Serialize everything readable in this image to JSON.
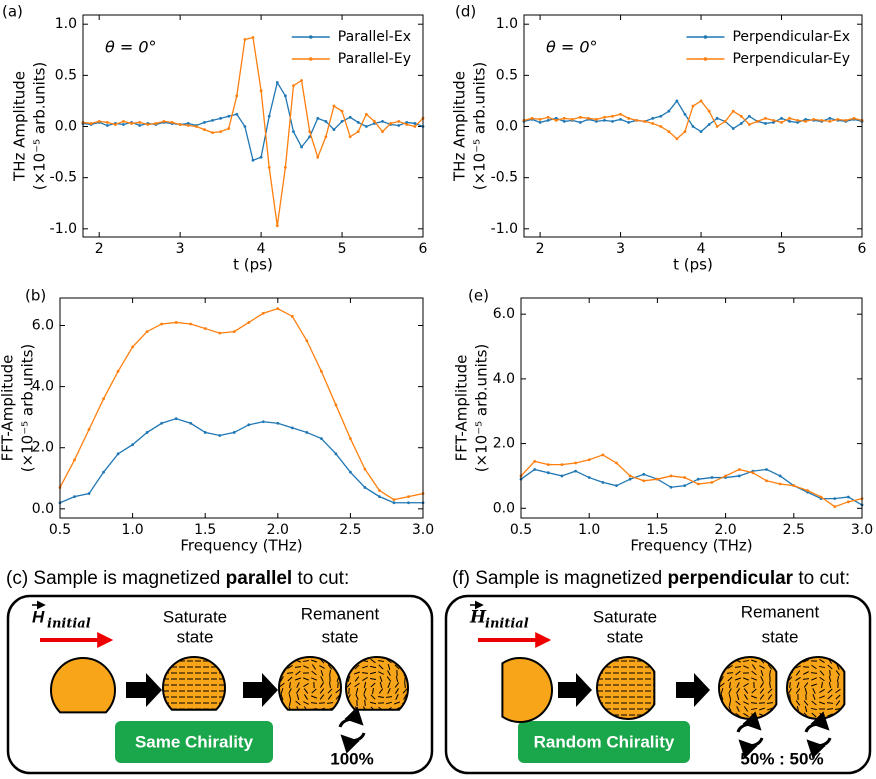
{
  "chart_data": [
    {
      "type": "line",
      "panel_label": "(a)",
      "xlabel": "t (ps)",
      "ylabel": [
        "THz Amplitude",
        "(×10⁻⁵ arb.units)"
      ],
      "annotation": "θ = 0°",
      "legend": "upper right",
      "x": [
        1.8,
        1.9,
        2.0,
        2.1,
        2.2,
        2.3,
        2.4,
        2.5,
        2.6,
        2.7,
        2.8,
        2.9,
        3.0,
        3.1,
        3.2,
        3.3,
        3.4,
        3.5,
        3.6,
        3.7,
        3.8,
        3.9,
        4.0,
        4.1,
        4.2,
        4.3,
        4.4,
        4.5,
        4.6,
        4.7,
        4.8,
        4.9,
        5.0,
        5.1,
        5.2,
        5.3,
        5.4,
        5.5,
        5.6,
        5.7,
        5.8,
        5.9,
        6.0
      ],
      "xlim": [
        1.8,
        6.0
      ],
      "xticks": [
        2,
        3,
        4,
        5,
        6
      ],
      "ylim": [
        -1.08,
        1.09
      ],
      "yticks": [
        {
          "value": -1.0,
          "label": "-1.0"
        },
        -0.5,
        {
          "value": 0.0,
          "label": "0.0"
        },
        0.5,
        {
          "value": 1.0,
          "label": "1.0"
        }
      ],
      "series": [
        {
          "name": "Parallel-Ex",
          "color": "#1f77b4",
          "values": [
            0.03,
            0.02,
            0.04,
            0.01,
            0.03,
            0.02,
            0.04,
            0.01,
            0.03,
            0.02,
            0.04,
            0.03,
            0.02,
            0.03,
            0.01,
            0.04,
            0.06,
            0.08,
            0.1,
            0.12,
            0.0,
            -0.33,
            -0.3,
            0.1,
            0.43,
            0.3,
            -0.05,
            -0.2,
            -0.1,
            0.08,
            0.05,
            -0.03,
            0.05,
            0.09,
            0.04,
            0.0,
            0.03,
            0.05,
            0.02,
            0.01,
            0.04,
            0.03,
            0.0
          ]
        },
        {
          "name": "Parallel-Ey",
          "color": "#ff7f0e",
          "values": [
            0.04,
            0.03,
            0.05,
            0.04,
            0.02,
            0.05,
            0.03,
            0.04,
            0.02,
            0.03,
            0.05,
            0.04,
            0.02,
            0.01,
            0.0,
            -0.03,
            -0.06,
            -0.05,
            -0.02,
            0.3,
            0.85,
            0.87,
            0.35,
            -0.4,
            -0.97,
            -0.4,
            0.4,
            0.45,
            -0.05,
            -0.3,
            -0.1,
            0.2,
            0.15,
            -0.1,
            -0.05,
            0.12,
            0.05,
            -0.05,
            0.03,
            0.05,
            0.02,
            0.0,
            0.08
          ]
        }
      ]
    },
    {
      "type": "line",
      "panel_label": "(b)",
      "xlabel": "Frequency (THz)",
      "ylabel": [
        "FFT-Amplitude",
        "(×10⁻⁵ arb.units)"
      ],
      "x": [
        0.5,
        0.6,
        0.7,
        0.8,
        0.9,
        1.0,
        1.1,
        1.2,
        1.3,
        1.4,
        1.5,
        1.6,
        1.7,
        1.8,
        1.9,
        2.0,
        2.1,
        2.2,
        2.3,
        2.4,
        2.5,
        2.6,
        2.7,
        2.8,
        2.9,
        3.0
      ],
      "xlim": [
        0.5,
        3.0
      ],
      "xticks": [
        0.5,
        {
          "value": 1.0,
          "label": "1.0"
        },
        1.5,
        {
          "value": 2.0,
          "label": "2.0"
        },
        2.5,
        {
          "value": 3.0,
          "label": "3.0"
        }
      ],
      "ylim": [
        -0.3,
        6.9
      ],
      "yticks": [
        {
          "value": 0.0,
          "label": "0.0"
        },
        {
          "value": 2.0,
          "label": "2.0"
        },
        {
          "value": 4.0,
          "label": "4.0"
        },
        {
          "value": 6.0,
          "label": "6.0"
        }
      ],
      "series": [
        {
          "color": "#1f77b4",
          "values": [
            0.2,
            0.4,
            0.5,
            1.2,
            1.8,
            2.1,
            2.5,
            2.8,
            2.95,
            2.8,
            2.5,
            2.4,
            2.5,
            2.75,
            2.85,
            2.8,
            2.65,
            2.5,
            2.3,
            1.8,
            1.2,
            0.7,
            0.4,
            0.2,
            0.2,
            0.2
          ]
        },
        {
          "color": "#ff7f0e",
          "values": [
            0.7,
            1.6,
            2.6,
            3.6,
            4.5,
            5.3,
            5.8,
            6.05,
            6.1,
            6.05,
            5.9,
            5.75,
            5.8,
            6.1,
            6.4,
            6.55,
            6.3,
            5.5,
            4.5,
            3.4,
            2.3,
            1.3,
            0.6,
            0.3,
            0.4,
            0.5
          ]
        }
      ]
    },
    {
      "type": "line",
      "panel_label": "(d)",
      "xlabel": "t (ps)",
      "ylabel": [
        "THz Amplitude",
        "(×10⁻⁵ arb.units)"
      ],
      "annotation": "θ = 0°",
      "legend": "upper right",
      "x": [
        1.8,
        1.9,
        2.0,
        2.1,
        2.2,
        2.3,
        2.4,
        2.5,
        2.6,
        2.7,
        2.8,
        2.9,
        3.0,
        3.1,
        3.2,
        3.3,
        3.4,
        3.5,
        3.6,
        3.7,
        3.8,
        3.9,
        4.0,
        4.1,
        4.2,
        4.3,
        4.4,
        4.5,
        4.6,
        4.7,
        4.8,
        4.9,
        5.0,
        5.1,
        5.2,
        5.3,
        5.4,
        5.5,
        5.6,
        5.7,
        5.8,
        5.9,
        6.0
      ],
      "xlim": [
        1.8,
        6.0
      ],
      "xticks": [
        2,
        3,
        4,
        5,
        6
      ],
      "ylim": [
        -1.08,
        1.09
      ],
      "yticks": [
        {
          "value": -1.0,
          "label": "-1.0"
        },
        -0.5,
        {
          "value": 0.0,
          "label": "0.0"
        },
        0.5,
        {
          "value": 1.0,
          "label": "1.0"
        }
      ],
      "series": [
        {
          "name": "Perpendicular-Ex",
          "color": "#1f77b4",
          "values": [
            0.05,
            0.07,
            0.04,
            0.06,
            0.08,
            0.05,
            0.06,
            0.04,
            0.07,
            0.05,
            0.06,
            0.05,
            0.07,
            0.04,
            0.06,
            0.05,
            0.08,
            0.1,
            0.15,
            0.25,
            0.12,
            0.0,
            -0.05,
            0.02,
            0.08,
            0.05,
            -0.02,
            0.03,
            0.1,
            0.05,
            0.03,
            0.04,
            0.08,
            0.05,
            0.04,
            0.07,
            0.06,
            0.05,
            0.08,
            0.06,
            0.05,
            0.07,
            0.05
          ]
        },
        {
          "name": "Perpendicular-Ey",
          "color": "#ff7f0e",
          "values": [
            0.06,
            0.08,
            0.07,
            0.09,
            0.06,
            0.08,
            0.07,
            0.09,
            0.08,
            0.07,
            0.09,
            0.1,
            0.12,
            0.08,
            0.06,
            0.05,
            0.03,
            0.0,
            -0.05,
            -0.12,
            -0.05,
            0.2,
            0.25,
            0.15,
            0.0,
            0.05,
            0.15,
            0.1,
            0.02,
            0.05,
            0.08,
            0.06,
            0.04,
            0.08,
            0.06,
            0.05,
            0.07,
            0.06,
            0.05,
            0.07,
            0.06,
            0.08,
            0.06
          ]
        }
      ]
    },
    {
      "type": "line",
      "panel_label": "(e)",
      "xlabel": "Frequency (THz)",
      "ylabel": [
        "FFT-Amplitude",
        "(×10⁻⁵ arb.units)"
      ],
      "x": [
        0.5,
        0.6,
        0.7,
        0.8,
        0.9,
        1.0,
        1.1,
        1.2,
        1.3,
        1.4,
        1.5,
        1.6,
        1.7,
        1.8,
        1.9,
        2.0,
        2.1,
        2.2,
        2.3,
        2.4,
        2.5,
        2.6,
        2.7,
        2.8,
        2.9,
        3.0
      ],
      "xlim": [
        0.5,
        3.0
      ],
      "xticks": [
        0.5,
        {
          "value": 1.0,
          "label": "1.0"
        },
        1.5,
        {
          "value": 2.0,
          "label": "2.0"
        },
        2.5,
        {
          "value": 3.0,
          "label": "3.0"
        }
      ],
      "ylim": [
        -0.3,
        6.5
      ],
      "yticks": [
        {
          "value": 0.0,
          "label": "0.0"
        },
        {
          "value": 2.0,
          "label": "2.0"
        },
        {
          "value": 4.0,
          "label": "4.0"
        },
        {
          "value": 6.0,
          "label": "6.0"
        }
      ],
      "series": [
        {
          "color": "#1f77b4",
          "values": [
            0.9,
            1.2,
            1.1,
            1.0,
            1.15,
            0.95,
            0.8,
            0.7,
            0.9,
            1.05,
            0.9,
            0.65,
            0.7,
            0.9,
            0.95,
            0.95,
            1.0,
            1.15,
            1.2,
            1.0,
            0.7,
            0.5,
            0.3,
            0.3,
            0.35,
            0.1
          ]
        },
        {
          "color": "#ff7f0e",
          "values": [
            1.0,
            1.45,
            1.35,
            1.35,
            1.4,
            1.5,
            1.65,
            1.4,
            1.0,
            0.85,
            0.9,
            1.0,
            0.95,
            0.75,
            0.8,
            1.0,
            1.2,
            1.1,
            0.85,
            0.75,
            0.7,
            0.55,
            0.35,
            0.05,
            0.2,
            0.3
          ]
        }
      ]
    }
  ],
  "diagrams": [
    {
      "caption": [
        "(c) Sample is magnetized",
        "parallel",
        "to cut:"
      ],
      "field_label": "H",
      "field_subscript": "initial",
      "saturate": [
        "Saturate",
        "state"
      ],
      "remanent": [
        "Remanent",
        "state"
      ],
      "chirality": "Same Chirality",
      "ratio": "100%"
    },
    {
      "caption": [
        "(f) Sample is magnetized",
        "perpendicular",
        "to cut:"
      ],
      "field_label": "H",
      "field_subscript": "initial",
      "saturate": [
        "Saturate",
        "state"
      ],
      "remanent": [
        "Remanent",
        "state"
      ],
      "chirality": "Random Chirality",
      "ratio": "50% : 50%"
    }
  ]
}
